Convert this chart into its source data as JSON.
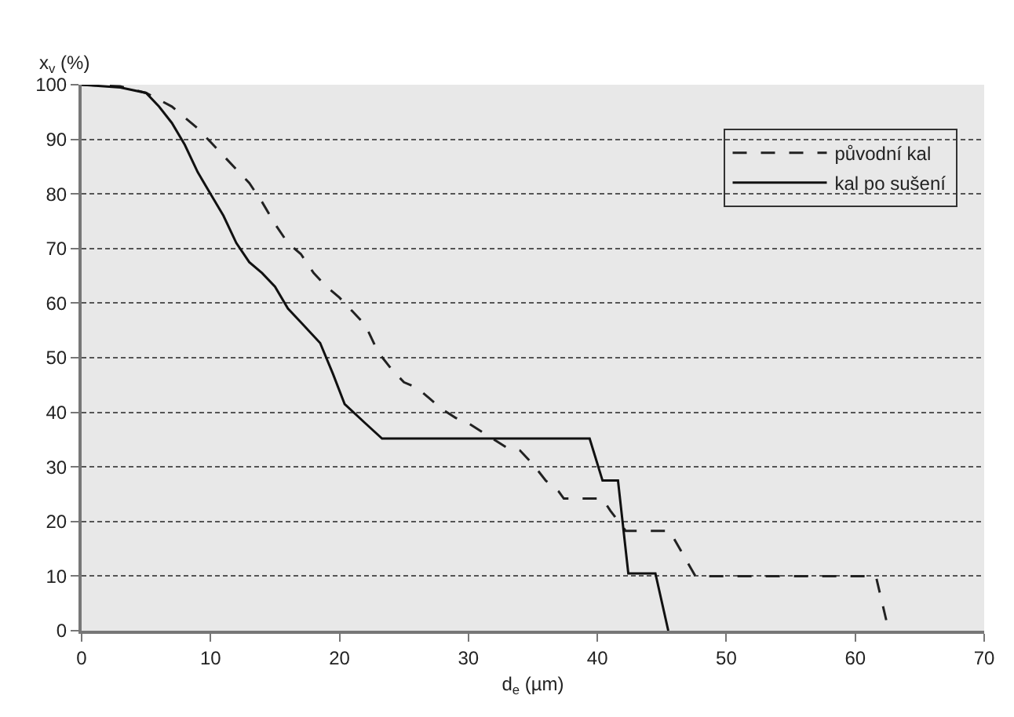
{
  "chart_data": {
    "type": "line",
    "xlabel": "d$_{e}$ (µm)",
    "ylabel": "x$_{v}$ (%)",
    "xlim": [
      0,
      70
    ],
    "xticks": [
      0,
      10,
      20,
      30,
      40,
      50,
      60,
      70
    ],
    "ylim": [
      0,
      100
    ],
    "yticks": [
      0,
      10,
      20,
      30,
      40,
      50,
      60,
      70,
      80,
      90,
      100
    ],
    "grid": "y",
    "legend": "top right",
    "marker": "none",
    "series": [
      {
        "name": "původní kal",
        "color": "#222222",
        "line_style": "dashed",
        "x": [
          0,
          3,
          5,
          7,
          8,
          9,
          10,
          11,
          12,
          13,
          14,
          15,
          16,
          17,
          18,
          19,
          20,
          21,
          22,
          23,
          24,
          25,
          26,
          27,
          28,
          29,
          30,
          31,
          32,
          33,
          34,
          35,
          36,
          37,
          37.4,
          40.4,
          41,
          42.2,
          45.6,
          47.6,
          61.6,
          62.6
        ],
        "values": [
          100,
          99.7,
          98.5,
          96,
          94,
          92,
          89.5,
          87,
          84.5,
          82,
          78.5,
          74.5,
          71,
          69,
          65.5,
          63,
          61,
          58.5,
          56,
          51,
          48,
          45.5,
          44.5,
          42.5,
          40.5,
          39,
          38,
          36.5,
          35,
          33.5,
          33,
          30.5,
          27.5,
          25.5,
          24.2,
          24.2,
          22,
          18.3,
          18.3,
          10,
          10,
          0
        ]
      },
      {
        "name": "kal po sušení",
        "color": "#111111",
        "line_style": "solid",
        "x": [
          0,
          3,
          5,
          6,
          7,
          8,
          9,
          10,
          11,
          12,
          13,
          14,
          15,
          16,
          17,
          18.5,
          19.5,
          20.4,
          22,
          23.3,
          39.4,
          40.4,
          41.6,
          42.4,
          44.5,
          45.5
        ],
        "values": [
          100,
          99.5,
          98.5,
          96,
          93,
          89,
          84,
          80,
          76,
          71,
          67.5,
          65.5,
          63,
          59,
          56.5,
          52.7,
          47,
          41.5,
          38,
          35.2,
          35.2,
          27.5,
          27.5,
          10.5,
          10.5,
          0
        ]
      }
    ]
  }
}
